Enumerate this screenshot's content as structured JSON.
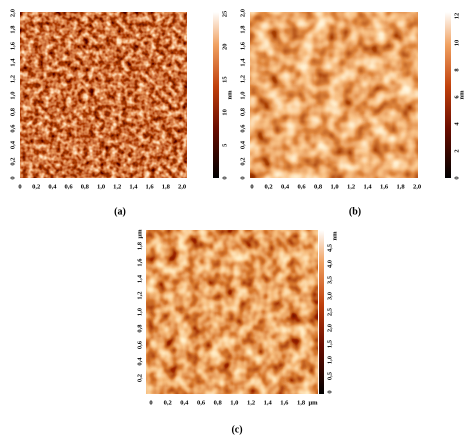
{
  "panels": [
    {
      "label": "(a)",
      "x_ticks": [
        "0",
        "0,2",
        "0,4",
        "0,6",
        "0,8",
        "1,0",
        "1,2",
        "1,4",
        "1,6",
        "1,8",
        "2,0"
      ],
      "y_ticks": [
        "0",
        "0,2",
        "0,4",
        "0,6",
        "0,8",
        "1,0",
        "1,2",
        "1,4",
        "1,6",
        "1,8",
        "2,0"
      ],
      "colorbar": {
        "ticks": [
          "0",
          "5",
          "10",
          "15",
          "20",
          "25"
        ],
        "unit": "nm"
      }
    },
    {
      "label": "(b)",
      "x_ticks": [
        "0",
        "0,2",
        "0,4",
        "0,6",
        "0,8",
        "1,0",
        "1,2",
        "1,4",
        "1,6",
        "1,8",
        "2,0"
      ],
      "y_ticks": [
        "0",
        "0,2",
        "0,4",
        "0,6",
        "0,8",
        "1,0",
        "1,2",
        "1,4",
        "1,6",
        "1,8",
        "2,0"
      ],
      "colorbar": {
        "ticks": [
          "0",
          "2",
          "4",
          "6",
          "8",
          "10",
          "12"
        ],
        "unit": "nm"
      }
    },
    {
      "label": "(c)",
      "x_ticks": [
        "0",
        "0,2",
        "0,4",
        "0,6",
        "0,8",
        "1,0",
        "1,2",
        "1,4",
        "1,6",
        "1,8"
      ],
      "x_unit": "μm",
      "y_ticks": [
        "0,2",
        "0,4",
        "0,6",
        "0,8",
        "1,0",
        "1,2",
        "1,4",
        "1,6",
        "1,8"
      ],
      "y_unit": "μm",
      "colorbar": {
        "ticks": [
          "0",
          "0,5",
          "1,0",
          "1,5",
          "2,0",
          "2,5",
          "3,0",
          "3,5",
          "4,0",
          "4,5"
        ],
        "unit": "nm"
      }
    }
  ]
}
